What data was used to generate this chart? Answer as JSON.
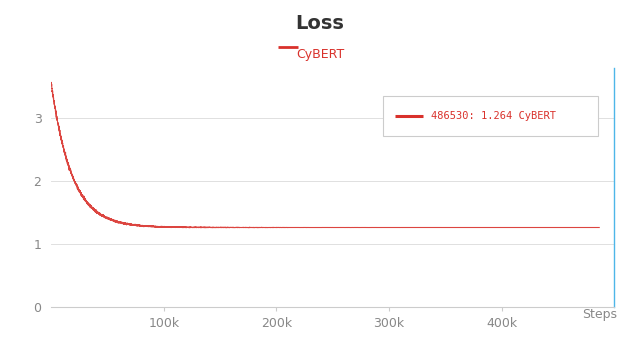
{
  "title": "Loss",
  "legend_label": "CyBERT",
  "xlabel": "Steps",
  "line_color": "#d9312b",
  "background_color": "#ffffff",
  "grid_color": "#e0e0e0",
  "annotation_text": "486530: 1.264 CyBERT",
  "x_end": 486530,
  "y_start": 3.5,
  "y_end": 1.264,
  "ylim": [
    0,
    3.8
  ],
  "xlim": [
    0,
    500000
  ],
  "yticks": [
    0,
    1,
    2,
    3
  ],
  "xticks": [
    100000,
    200000,
    300000,
    400000
  ],
  "xtick_labels": [
    "100k",
    "200k",
    "300k",
    "400k"
  ],
  "right_border_color": "#4db6e8",
  "tick_color": "#aaaaaa",
  "label_color": "#888888",
  "decay_a": 2.3,
  "decay_b": 5.5e-05,
  "noise_scale": 0.018
}
